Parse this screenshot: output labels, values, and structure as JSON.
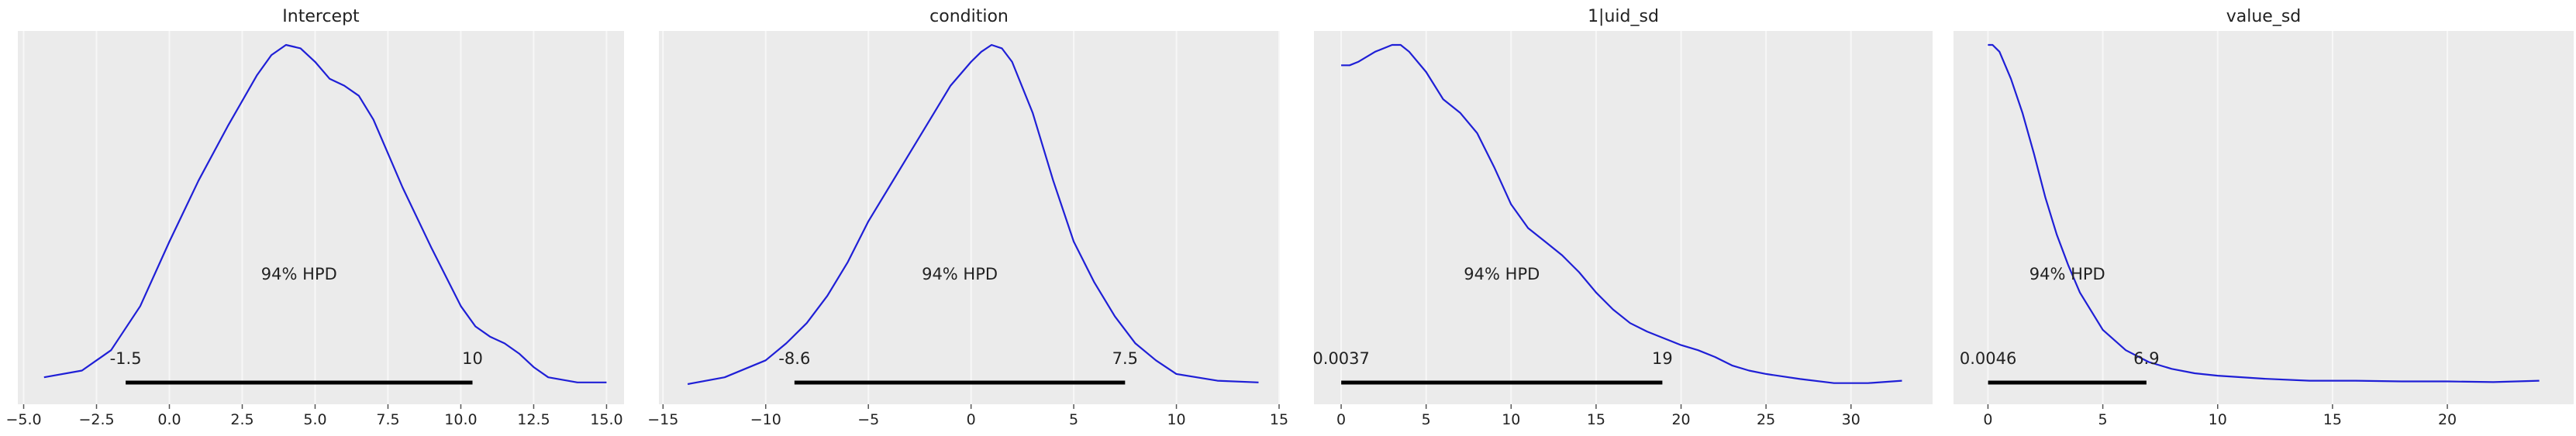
{
  "colors": {
    "background": "#ffffff",
    "panel_background": "#ebebeb",
    "grid": "#f7f7f7",
    "line": "#1f1fd6",
    "hpd_bar": "#000000",
    "text": "#222222"
  },
  "chart_data": [
    {
      "type": "line",
      "title": "Intercept",
      "xlim": [
        -5.2,
        15.6
      ],
      "xticks": [
        -5.0,
        -2.5,
        0.0,
        2.5,
        5.0,
        7.5,
        10.0,
        12.5,
        15.0
      ],
      "xtick_labels": [
        "−5.0",
        "−2.5",
        "0.0",
        "2.5",
        "5.0",
        "7.5",
        "10.0",
        "12.5",
        "15.0"
      ],
      "grid": true,
      "y_axis_visible": false,
      "series": [
        {
          "x": [
            -4.3,
            -3.0,
            -2.0,
            -1.0,
            0.0,
            1.0,
            2.0,
            3.0,
            3.5,
            4.0,
            4.5,
            5.0,
            5.5,
            6.0,
            6.5,
            7.0,
            7.5,
            8.0,
            9.0,
            10.0,
            10.5,
            11.0,
            11.5,
            12.0,
            12.5,
            13.0,
            14.0,
            15.0
          ],
          "y": [
            0.02,
            0.04,
            0.1,
            0.23,
            0.42,
            0.6,
            0.76,
            0.91,
            0.97,
            1.0,
            0.99,
            0.95,
            0.9,
            0.88,
            0.85,
            0.78,
            0.68,
            0.58,
            0.4,
            0.23,
            0.17,
            0.14,
            0.12,
            0.09,
            0.05,
            0.02,
            0.005,
            0.005
          ]
        }
      ],
      "hpd": {
        "label": "94% HPD",
        "lower": -1.5,
        "upper": 10.4,
        "lower_label": "-1.5",
        "upper_label": "10"
      }
    },
    {
      "type": "line",
      "title": "condition",
      "xlim": [
        -15.2,
        15.0
      ],
      "xticks": [
        -15,
        -10,
        -5,
        0,
        5,
        10,
        15
      ],
      "xtick_labels": [
        "−15",
        "−10",
        "−5",
        "0",
        "5",
        "10",
        "15"
      ],
      "grid": true,
      "y_axis_visible": false,
      "series": [
        {
          "x": [
            -13.8,
            -12.0,
            -10.0,
            -9.0,
            -8.0,
            -7.0,
            -6.0,
            -5.0,
            -4.0,
            -3.0,
            -2.0,
            -1.0,
            0.0,
            0.5,
            1.0,
            1.5,
            2.0,
            3.0,
            4.0,
            5.0,
            6.0,
            7.0,
            8.0,
            9.0,
            10.0,
            12.0,
            14.0
          ],
          "y": [
            0.0,
            0.02,
            0.07,
            0.12,
            0.18,
            0.26,
            0.36,
            0.48,
            0.58,
            0.68,
            0.78,
            0.88,
            0.95,
            0.98,
            1.0,
            0.99,
            0.95,
            0.8,
            0.6,
            0.42,
            0.3,
            0.2,
            0.12,
            0.07,
            0.03,
            0.01,
            0.005
          ]
        }
      ],
      "hpd": {
        "label": "94% HPD",
        "lower": -8.6,
        "upper": 7.5,
        "lower_label": "-8.6",
        "upper_label": "7.5"
      }
    },
    {
      "type": "line",
      "title": "1|uid_sd",
      "xlim": [
        -1.6,
        34.8
      ],
      "xticks": [
        0,
        5,
        10,
        15,
        20,
        25,
        30
      ],
      "xtick_labels": [
        "0",
        "5",
        "10",
        "15",
        "20",
        "25",
        "30"
      ],
      "grid": true,
      "y_axis_visible": false,
      "series": [
        {
          "x": [
            0.0,
            0.5,
            1.0,
            2.0,
            3.0,
            3.5,
            4.0,
            5.0,
            6.0,
            7.0,
            8.0,
            9.0,
            10.0,
            11.0,
            12.0,
            13.0,
            14.0,
            15.0,
            16.0,
            17.0,
            18.0,
            19.0,
            20.0,
            21.0,
            22.0,
            23.0,
            24.0,
            25.0,
            27.0,
            29.0,
            31.0,
            33.0
          ],
          "y": [
            0.94,
            0.94,
            0.95,
            0.98,
            1.0,
            1.0,
            0.98,
            0.92,
            0.84,
            0.8,
            0.74,
            0.64,
            0.53,
            0.46,
            0.42,
            0.38,
            0.33,
            0.27,
            0.22,
            0.18,
            0.155,
            0.135,
            0.115,
            0.1,
            0.08,
            0.055,
            0.04,
            0.03,
            0.015,
            0.003,
            0.003,
            0.01
          ]
        }
      ],
      "hpd": {
        "label": "94% HPD",
        "lower": 0.0037,
        "upper": 18.9,
        "lower_label": "0.0037",
        "upper_label": "19"
      }
    },
    {
      "type": "line",
      "title": "value_sd",
      "xlim": [
        -1.5,
        25.5
      ],
      "xticks": [
        0,
        5,
        10,
        15,
        20
      ],
      "xtick_labels": [
        "0",
        "5",
        "10",
        "15",
        "20"
      ],
      "grid": true,
      "y_axis_visible": false,
      "series": [
        {
          "x": [
            0.0,
            0.2,
            0.5,
            1.0,
            1.5,
            2.0,
            2.5,
            3.0,
            3.5,
            4.0,
            5.0,
            6.0,
            7.0,
            8.0,
            9.0,
            10.0,
            12.0,
            14.0,
            16.0,
            18.0,
            20.0,
            22.0,
            24.0
          ],
          "y": [
            1.0,
            1.0,
            0.98,
            0.9,
            0.8,
            0.68,
            0.55,
            0.44,
            0.35,
            0.27,
            0.16,
            0.1,
            0.065,
            0.045,
            0.032,
            0.025,
            0.016,
            0.01,
            0.01,
            0.008,
            0.008,
            0.006,
            0.01
          ]
        }
      ],
      "hpd": {
        "label": "94% HPD",
        "lower": 0.0046,
        "upper": 6.9,
        "lower_label": "0.0046",
        "upper_label": "6.9"
      }
    }
  ]
}
